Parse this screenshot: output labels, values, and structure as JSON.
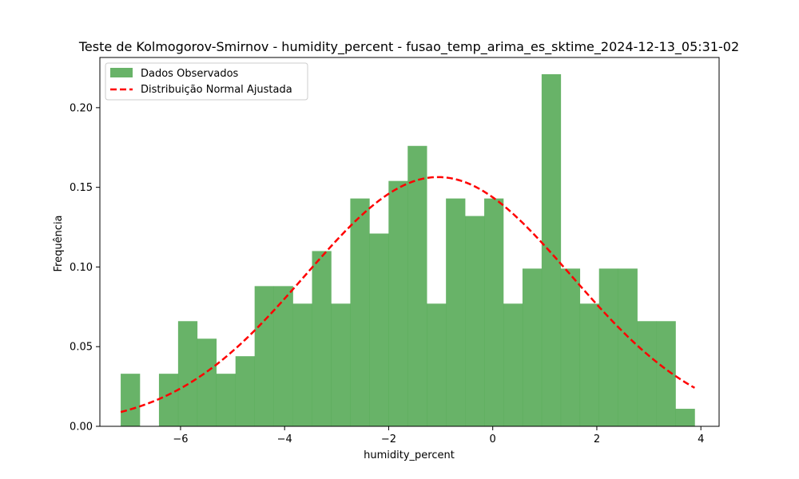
{
  "chart_data": {
    "type": "bar",
    "title": "Teste de Kolmogorov-Smirnov - humidity_percent - fusao_temp_arima_es_sktime_2024-12-13_05:31-02",
    "xlabel": "humidity_percent",
    "ylabel": "Frequência",
    "xlim": [
      -7.55,
      4.35
    ],
    "ylim": [
      0,
      0.2315
    ],
    "xticks": [
      -6,
      -4,
      -2,
      0,
      2,
      4
    ],
    "xtick_labels": [
      "−6",
      "−4",
      "−2",
      "0",
      "2",
      "4"
    ],
    "yticks": [
      0.0,
      0.05,
      0.1,
      0.15,
      0.2
    ],
    "ytick_labels": [
      "0.00",
      "0.05",
      "0.10",
      "0.15",
      "0.20"
    ],
    "grid": false,
    "legend_position": "top-left",
    "histogram": {
      "name": "Dados Observados",
      "color": "#4da64d",
      "bin_start": -7.15,
      "bin_width": 0.3677,
      "values": [
        0.033,
        0.0,
        0.033,
        0.066,
        0.055,
        0.033,
        0.044,
        0.088,
        0.088,
        0.077,
        0.11,
        0.077,
        0.143,
        0.121,
        0.154,
        0.176,
        0.077,
        0.143,
        0.132,
        0.143,
        0.077,
        0.099,
        0.221,
        0.099,
        0.077,
        0.099,
        0.099,
        0.066,
        0.066,
        0.011
      ]
    },
    "fit": {
      "name": "Distribuição Normal Ajustada",
      "color": "#ff0000",
      "style": "dashed",
      "mean": -1.05,
      "std": 2.55,
      "x_range": [
        -7.15,
        3.88
      ]
    }
  }
}
